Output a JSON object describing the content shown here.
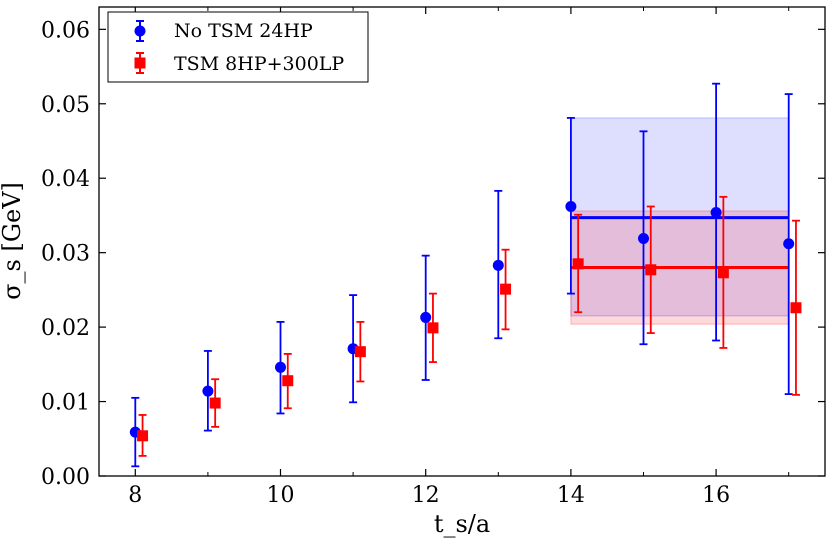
{
  "chart_data": {
    "type": "scatter",
    "title": "",
    "xlabel": "t_s/a",
    "ylabel": "σ_s [GeV]",
    "xlim": [
      7.5,
      17.5
    ],
    "ylim": [
      0.0,
      0.063
    ],
    "xticks": [
      8,
      10,
      12,
      14,
      16
    ],
    "yticks": [
      0.0,
      0.01,
      0.02,
      0.03,
      0.04,
      0.05,
      0.06
    ],
    "ytick_labels": [
      "0.00",
      "0.01",
      "0.02",
      "0.03",
      "0.04",
      "0.05",
      "0.06"
    ],
    "grid": false,
    "legend_position": "top-left",
    "series": [
      {
        "name": "No TSM 24HP",
        "color": "#0000ff",
        "marker": "circle",
        "x": [
          8,
          9,
          10,
          11,
          12,
          13,
          14,
          15,
          16,
          17
        ],
        "y": [
          0.0059,
          0.0114,
          0.0146,
          0.0171,
          0.0213,
          0.0283,
          0.0362,
          0.0319,
          0.0354,
          0.0312
        ],
        "err_low": [
          0.0013,
          0.0061,
          0.0084,
          0.0099,
          0.0129,
          0.0185,
          0.0245,
          0.0177,
          0.0182,
          0.011
        ],
        "err_high": [
          0.0105,
          0.0168,
          0.0207,
          0.0243,
          0.0296,
          0.0383,
          0.0481,
          0.0463,
          0.0527,
          0.0513
        ],
        "fit": {
          "x": [
            14,
            17
          ],
          "value": 0.0347,
          "band": [
            0.0215,
            0.0481
          ]
        }
      },
      {
        "name": "TSM 8HP+300LP",
        "color": "#ff0000",
        "marker": "square",
        "x": [
          8,
          9,
          10,
          11,
          12,
          13,
          14,
          15,
          16,
          17
        ],
        "y": [
          0.0054,
          0.0098,
          0.0128,
          0.0167,
          0.0199,
          0.0251,
          0.0285,
          0.0277,
          0.0273,
          0.0226
        ],
        "err_low": [
          0.0027,
          0.0066,
          0.0091,
          0.0127,
          0.0153,
          0.0197,
          0.022,
          0.0192,
          0.0172,
          0.0109
        ],
        "err_high": [
          0.0082,
          0.013,
          0.0164,
          0.0207,
          0.0245,
          0.0304,
          0.0351,
          0.0362,
          0.0375,
          0.0343
        ],
        "fit": {
          "x": [
            14,
            17
          ],
          "value": 0.028,
          "band": [
            0.0204,
            0.0356
          ]
        }
      }
    ]
  }
}
